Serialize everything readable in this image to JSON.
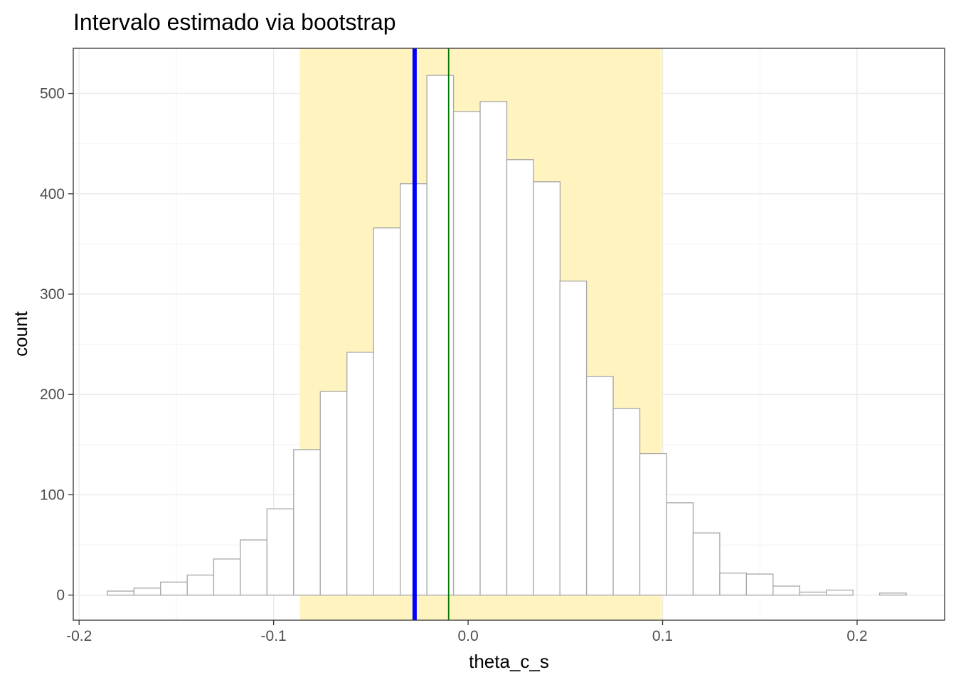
{
  "chart_data": {
    "type": "bar",
    "title": "Intervalo estimado via bootstrap",
    "xlabel": "theta_c_s",
    "ylabel": "count",
    "xlim": [
      -0.203,
      0.245
    ],
    "ylim": [
      -25,
      545
    ],
    "x_ticks": [
      -0.2,
      -0.1,
      0.0,
      0.1,
      0.2
    ],
    "x_tick_labels": [
      "-0.2",
      "-0.1",
      "0.0",
      "0.1",
      "0.2"
    ],
    "y_ticks": [
      0,
      100,
      200,
      300,
      400,
      500
    ],
    "y_tick_labels": [
      "0",
      "100",
      "200",
      "300",
      "400",
      "500"
    ],
    "grid": true,
    "bins": {
      "x_start": [
        -0.1855,
        -0.1718,
        -0.1581,
        -0.1444,
        -0.1308,
        -0.1171,
        -0.1034,
        -0.0897,
        -0.076,
        -0.0623,
        -0.0486,
        -0.0349,
        -0.0212,
        -0.0075,
        0.0062,
        0.0199,
        0.0336,
        0.0472,
        0.0609,
        0.0746,
        0.0883,
        0.102,
        0.1157,
        0.1294,
        0.1431,
        0.1568,
        0.1705,
        0.1842,
        0.1979,
        0.2116
      ],
      "width": 0.0137,
      "counts": [
        4,
        7,
        13,
        20,
        36,
        55,
        86,
        145,
        203,
        242,
        366,
        410,
        518,
        482,
        492,
        434,
        412,
        313,
        218,
        186,
        141,
        92,
        62,
        22,
        21,
        9,
        3,
        5,
        0,
        2
      ],
      "fill": "#ffffff",
      "stroke": "#a6a6a6"
    },
    "interval": {
      "lower": -0.0865,
      "upper": 0.0995,
      "color": "#fff4bf"
    },
    "reference_lines": [
      {
        "x": -0.0275,
        "color": "#0000ff"
      },
      {
        "x": -0.01,
        "color": "#007700"
      }
    ]
  }
}
